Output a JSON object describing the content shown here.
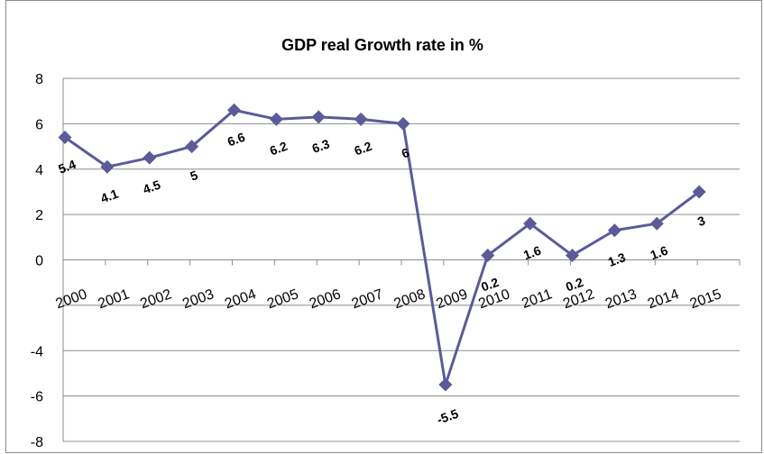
{
  "chart_data": {
    "type": "line",
    "title": "GDP real Growth rate in %",
    "xlabel": "",
    "ylabel": "",
    "categories": [
      "2000",
      "2001",
      "2002",
      "2003",
      "2004",
      "2005",
      "2006",
      "2007",
      "2008",
      "2009",
      "2010",
      "2011",
      "2012",
      "2013",
      "2014",
      "2015"
    ],
    "series": [
      {
        "values": [
          5.4,
          4.1,
          4.5,
          5,
          6.6,
          6.2,
          6.3,
          6.2,
          6,
          -5.5,
          0.2,
          1.6,
          0.2,
          1.3,
          1.6,
          3
        ],
        "labels": [
          "5.4",
          "4.1",
          "4.5",
          "5",
          "6.6",
          "6.2",
          "6.3",
          "6.2",
          "6",
          "-5.5",
          "0.2",
          "1.6",
          "0.2",
          "1.3",
          "1.6",
          "3"
        ],
        "color": "#5b5b9a"
      }
    ],
    "ylim": [
      -8,
      8
    ],
    "yticks": [
      -8,
      -6,
      -4,
      -2,
      0,
      2,
      4,
      6,
      8
    ],
    "ytick_labels": [
      "-8",
      "-6",
      "-4",
      "",
      "0",
      "2",
      "4",
      "6",
      "8"
    ],
    "grid": true,
    "legend": "none"
  }
}
